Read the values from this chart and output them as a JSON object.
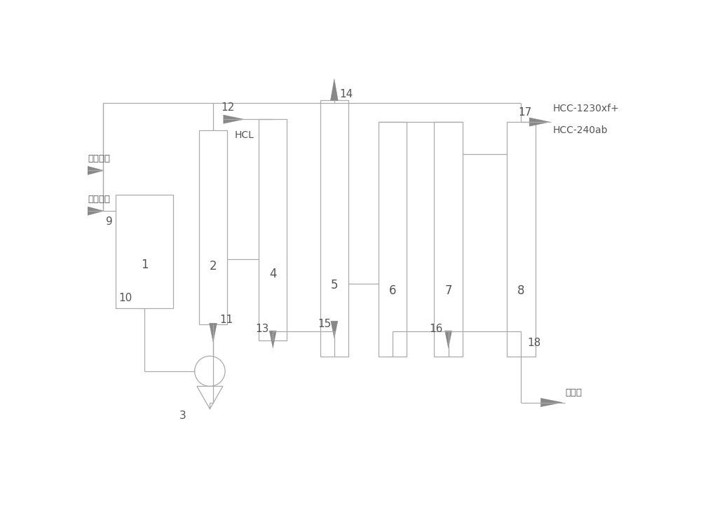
{
  "bg_color": "#ffffff",
  "line_color": "#aaaaaa",
  "box_edge": "#aaaaaa",
  "arrow_color": "#888888",
  "text_color": "#555555",
  "labels": {
    "input1": "一氯甲烷",
    "input2": "四氯乙烯",
    "output_top": "HCC-1230xf+",
    "output_top2": "HCC-240ab",
    "output_bottom": "高永物",
    "hcl": "HCL"
  },
  "numbers": {
    "n1": "1",
    "n2": "2",
    "n3": "3",
    "n4": "4",
    "n5": "5",
    "n6": "6",
    "n7": "7",
    "n8": "8",
    "n9": "9",
    "n10": "10",
    "n11": "11",
    "n12": "12",
    "n13": "13",
    "n14": "14",
    "n15": "15",
    "n16": "16",
    "n17": "17",
    "n18": "18"
  },
  "layout": {
    "fig_w": 10.0,
    "fig_h": 7.58,
    "xlim": [
      0,
      10
    ],
    "ylim": [
      0,
      7.58
    ]
  }
}
